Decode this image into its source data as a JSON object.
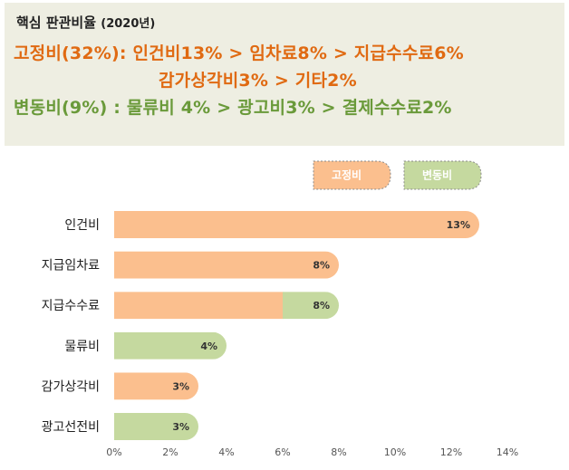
{
  "header": {
    "title": "핵심 판관비율",
    "year": "(2020년)",
    "fixed_line1": "고정비(32%): 인건비13% > 임차료8% > 지급수수료6%",
    "fixed_line2": "감가상각비3% > 기타2%",
    "variable_line": "변동비(9%) :  물류비 4% > 광고비3% > 결제수수료2%"
  },
  "chart_data": {
    "type": "bar",
    "orientation": "horizontal",
    "title": "",
    "xlabel": "",
    "ylabel": "",
    "categories": [
      "인건비",
      "지급임차료",
      "지급수수료",
      "물류비",
      "감가상각비",
      "광고선전비"
    ],
    "values": [
      13,
      8,
      8,
      4,
      3,
      3
    ],
    "data_labels": [
      "13%",
      "8%",
      "8%",
      "4%",
      "3%",
      "3%"
    ],
    "segments": [
      [
        {
          "series": "고정비",
          "value": 13
        }
      ],
      [
        {
          "series": "고정비",
          "value": 8
        }
      ],
      [
        {
          "series": "고정비",
          "value": 6
        },
        {
          "series": "변동비",
          "value": 2
        }
      ],
      [
        {
          "series": "변동비",
          "value": 4
        }
      ],
      [
        {
          "series": "고정비",
          "value": 3
        }
      ],
      [
        {
          "series": "변동비",
          "value": 3
        }
      ]
    ],
    "series": [
      {
        "name": "고정비",
        "color": "#fbbf8e"
      },
      {
        "name": "변동비",
        "color": "#c5d99f"
      }
    ],
    "xlim": [
      0,
      14
    ],
    "xticks": [
      0,
      2,
      4,
      6,
      8,
      10,
      12,
      14
    ],
    "xtick_labels": [
      "0%",
      "2%",
      "4%",
      "6%",
      "8%",
      "10%",
      "12%",
      "14%"
    ],
    "grid": false,
    "legend_position": "top-right"
  }
}
